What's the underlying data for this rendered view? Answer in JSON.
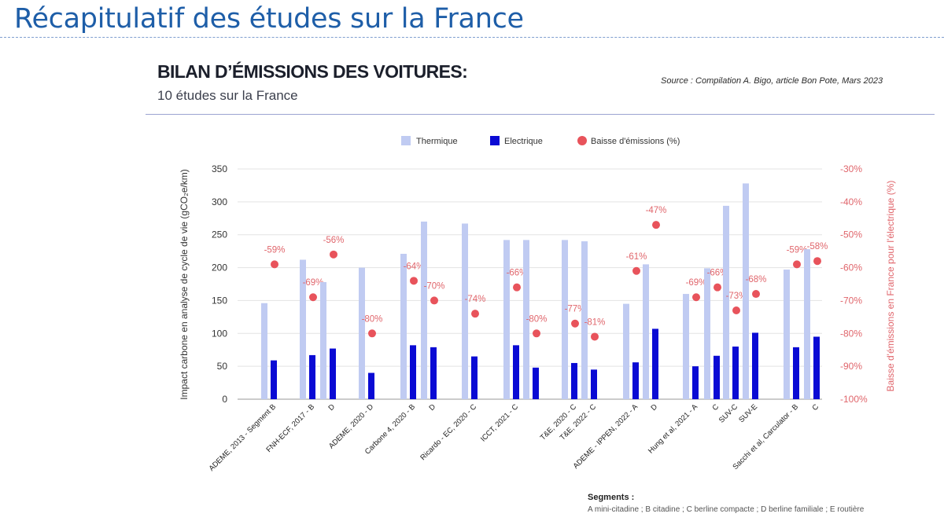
{
  "slide": {
    "title": "Récapitulatif des études sur la France"
  },
  "chart_header": {
    "heading": "BILAN D’ÉMISSIONS DES VOITURES:",
    "subheading": "10 études sur la France",
    "source": "Source : Compilation A. Bigo, article Bon Pote, Mars 2023"
  },
  "footnote": {
    "segments_title": "Segments :",
    "segments_text": "A mini-citadine ; B citadine ; C berline compacte ; D berline familiale ; E routière"
  },
  "colors": {
    "thermique": "#c0cbf2",
    "electrique": "#0a0ad4",
    "baisse": "#e8535b",
    "baisse_text": "#e0666c",
    "grid": "#e3e3e3",
    "axis_text": "#333333"
  },
  "chart_data": {
    "type": "bar",
    "legend": {
      "placement": "top-center",
      "entries": [
        "Thermique",
        "Electrique",
        "Baisse d'émissions (%)"
      ]
    },
    "ylabel": "Impact carbone en analyse de cycle de vie (gCO₂e/km)",
    "y2label": "Baisse d'émissions en France pour l'électrique (%)",
    "ylim": [
      0,
      350
    ],
    "yticks": [
      0,
      50,
      100,
      150,
      200,
      250,
      300,
      350
    ],
    "y2lim": [
      -100,
      -30
    ],
    "y2ticks": [
      "-30%",
      "-40%",
      "-50%",
      "-60%",
      "-70%",
      "-80%",
      "-90%",
      "-100%"
    ],
    "grid": true,
    "categories": [
      "ADEME, 2013 - Segment B",
      "FNH-ECF, 2017 - B",
      "D",
      "ADEME, 2020 - D",
      "Carbone 4, 2020 - B",
      "D",
      "Ricardo - EC, 2020 - C",
      "ICCT, 2021 - C",
      "",
      "T&E, 2020 - C",
      "T&E, 2022 - C",
      "ADEME - IPPEN, 2022 - A",
      "D",
      "Hung et al, 2021 - A",
      "C",
      "SUV-C",
      "SUV-E",
      "Sacchi et al, Carculator - B",
      "C"
    ],
    "series": [
      {
        "name": "Thermique",
        "values": [
          146,
          212,
          178,
          200,
          221,
          270,
          267,
          242,
          242,
          242,
          240,
          145,
          205,
          160,
          199,
          294,
          328,
          197,
          228
        ]
      },
      {
        "name": "Electrique",
        "values": [
          59,
          67,
          77,
          40,
          82,
          79,
          65,
          82,
          48,
          55,
          45,
          56,
          107,
          50,
          66,
          80,
          101,
          79,
          95
        ]
      },
      {
        "name": "Baisse d'émissions (%)",
        "values": [
          -59,
          -69,
          -56,
          -80,
          -64,
          -70,
          -74,
          -66,
          -80,
          -77,
          -81,
          -61,
          -47,
          -69,
          -66,
          -73,
          -68,
          -59,
          -58
        ],
        "labels": [
          "-59%",
          "-69%",
          "-56%",
          "-80%",
          "-64%",
          "-70%",
          "-74%",
          "-66%",
          "-80%",
          "-77%",
          "-81%",
          "-61%",
          "-47%",
          "-69%",
          "-66%",
          "-73%",
          "-68%",
          "-59%",
          "-58%"
        ]
      }
    ]
  }
}
